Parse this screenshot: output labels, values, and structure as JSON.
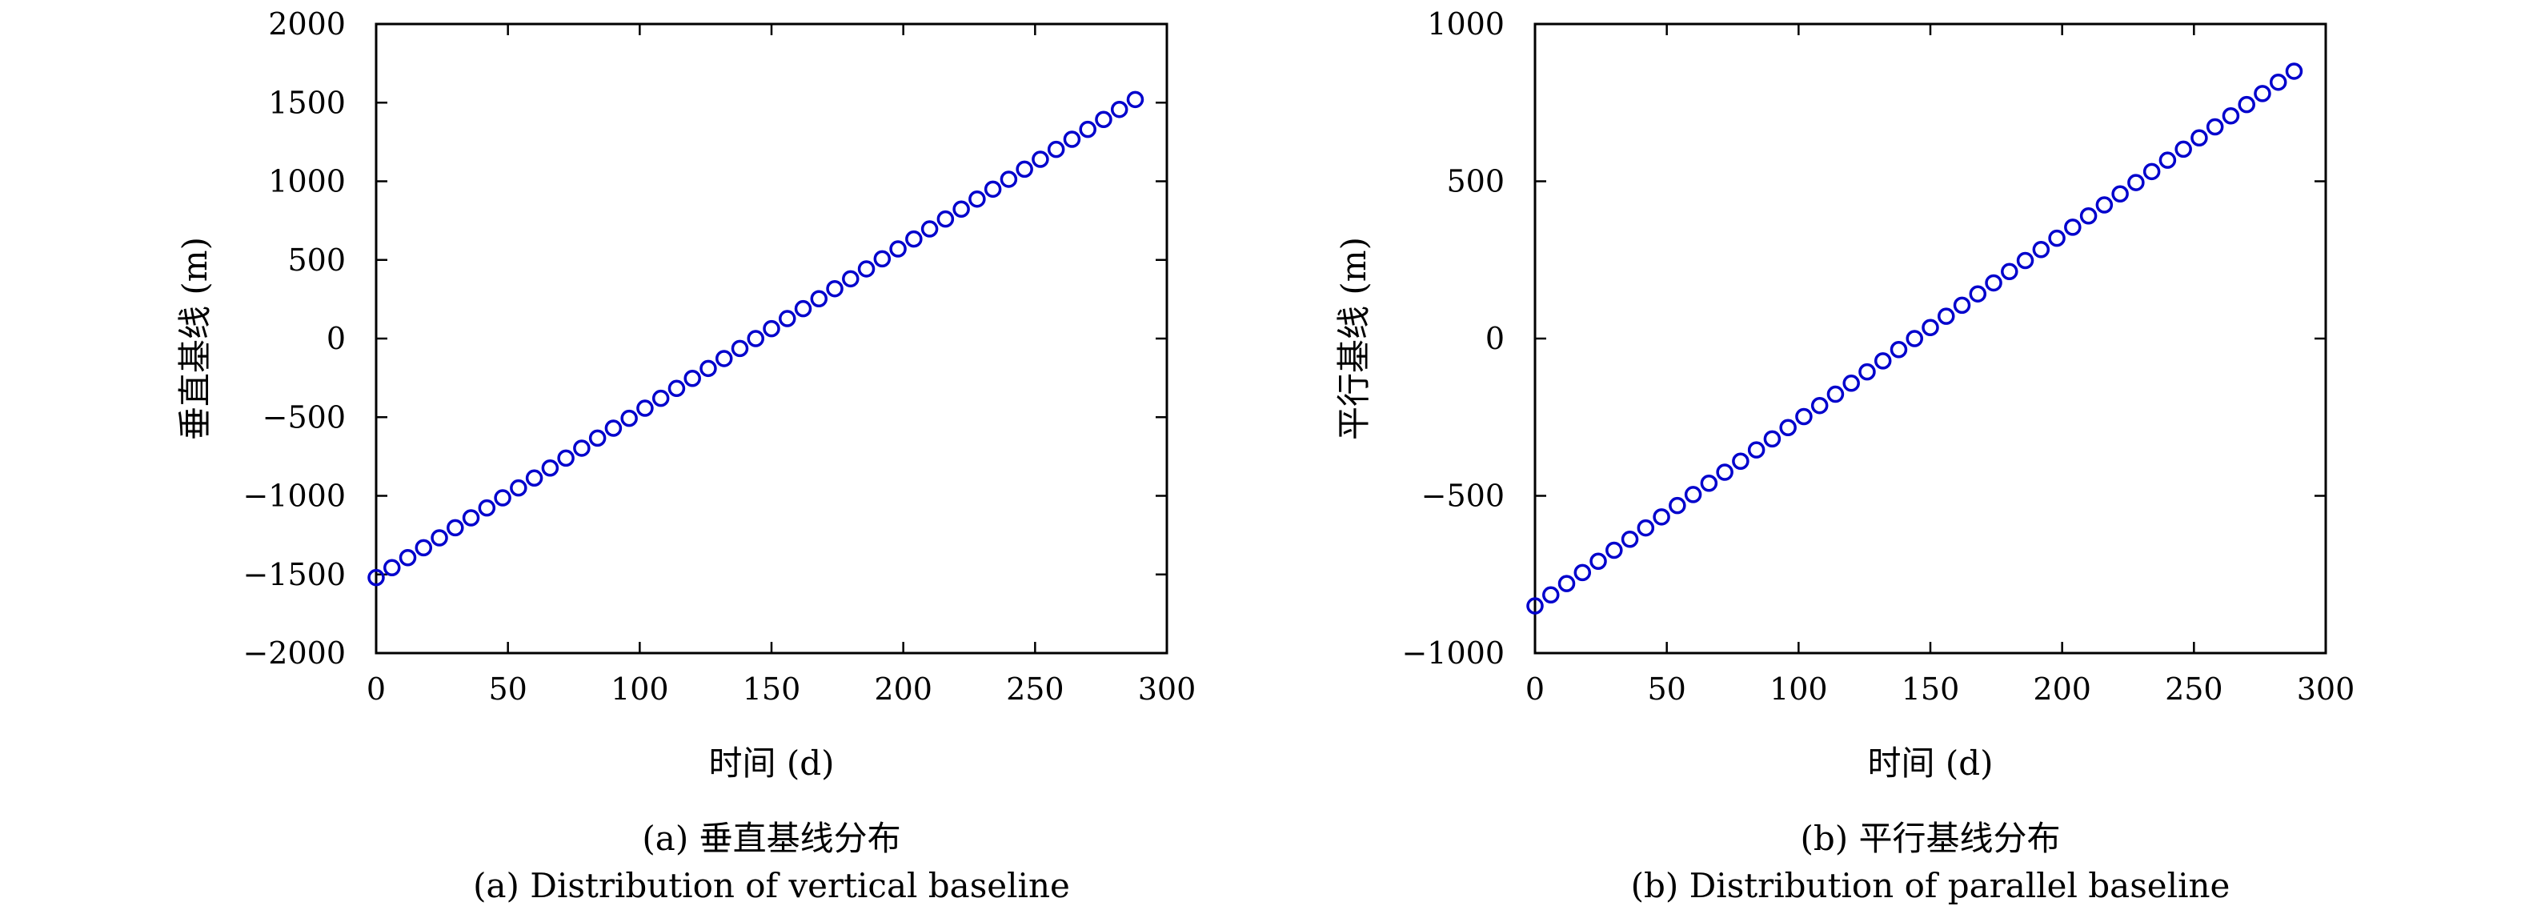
{
  "chart_data": [
    {
      "type": "scatter",
      "caption_cn": "(a) 垂直基线分布",
      "caption_en": "(a) Distribution of vertical baseline",
      "xlabel": "时间 (d)",
      "ylabel": "垂直基线 (m)",
      "xlim": [
        0,
        300
      ],
      "ylim": [
        -2000,
        2000
      ],
      "xticks": [
        0,
        50,
        100,
        150,
        200,
        250,
        300
      ],
      "xtick_labels": [
        "0",
        "50",
        "100",
        "150",
        "200",
        "250",
        "300"
      ],
      "yticks": [
        -2000,
        -1500,
        -1000,
        -500,
        0,
        500,
        1000,
        1500,
        2000
      ],
      "ytick_labels": [
        "−2000",
        "−1500",
        "−1000",
        "−500",
        "0",
        "500",
        "1000",
        "1500",
        "2000"
      ],
      "grid": false,
      "marker": "circle",
      "color": "#0000cc",
      "series": [
        {
          "x": [
            0,
            6,
            12,
            18,
            24,
            30,
            36,
            42,
            48,
            54,
            60,
            66,
            72,
            78,
            84,
            90,
            96,
            102,
            108,
            114,
            120,
            126,
            132,
            138,
            144,
            150,
            156,
            162,
            168,
            174,
            180,
            186,
            192,
            198,
            204,
            210,
            216,
            222,
            228,
            234,
            240,
            246,
            252,
            258,
            264,
            270,
            276,
            282,
            288
          ],
          "y": [
            -1520,
            -1457,
            -1393,
            -1330,
            -1267,
            -1203,
            -1140,
            -1077,
            -1013,
            -950,
            -887,
            -823,
            -760,
            -697,
            -633,
            -570,
            -507,
            -443,
            -380,
            -317,
            -253,
            -190,
            -127,
            -63,
            0,
            63,
            127,
            190,
            253,
            317,
            380,
            443,
            507,
            570,
            633,
            697,
            760,
            823,
            887,
            950,
            1013,
            1077,
            1140,
            1203,
            1267,
            1330,
            1393,
            1457,
            1520
          ]
        }
      ]
    },
    {
      "type": "scatter",
      "caption_cn": "(b) 平行基线分布",
      "caption_en": "(b) Distribution of parallel baseline",
      "xlabel": "时间 (d)",
      "ylabel": "平行基线 (m)",
      "xlim": [
        0,
        300
      ],
      "ylim": [
        -1000,
        1000
      ],
      "xticks": [
        0,
        50,
        100,
        150,
        200,
        250,
        300
      ],
      "xtick_labels": [
        "0",
        "50",
        "100",
        "150",
        "200",
        "250",
        "300"
      ],
      "yticks": [
        -1000,
        -500,
        0,
        500,
        1000
      ],
      "ytick_labels": [
        "−1000",
        "−500",
        "0",
        "500",
        "1000"
      ],
      "grid": false,
      "marker": "circle",
      "color": "#0000cc",
      "series": [
        {
          "x": [
            0,
            6,
            12,
            18,
            24,
            30,
            36,
            42,
            48,
            54,
            60,
            66,
            72,
            78,
            84,
            90,
            96,
            102,
            108,
            114,
            120,
            126,
            132,
            138,
            144,
            150,
            156,
            162,
            168,
            174,
            180,
            186,
            192,
            198,
            204,
            210,
            216,
            222,
            228,
            234,
            240,
            246,
            252,
            258,
            264,
            270,
            276,
            282,
            288
          ],
          "y": [
            -850,
            -815,
            -779,
            -744,
            -708,
            -673,
            -638,
            -602,
            -567,
            -531,
            -496,
            -460,
            -425,
            -390,
            -354,
            -319,
            -283,
            -248,
            -213,
            -177,
            -142,
            -106,
            -71,
            -35,
            0,
            35,
            71,
            106,
            142,
            177,
            213,
            248,
            283,
            319,
            354,
            390,
            425,
            460,
            496,
            531,
            567,
            602,
            638,
            673,
            708,
            744,
            779,
            815,
            850
          ]
        }
      ]
    }
  ]
}
